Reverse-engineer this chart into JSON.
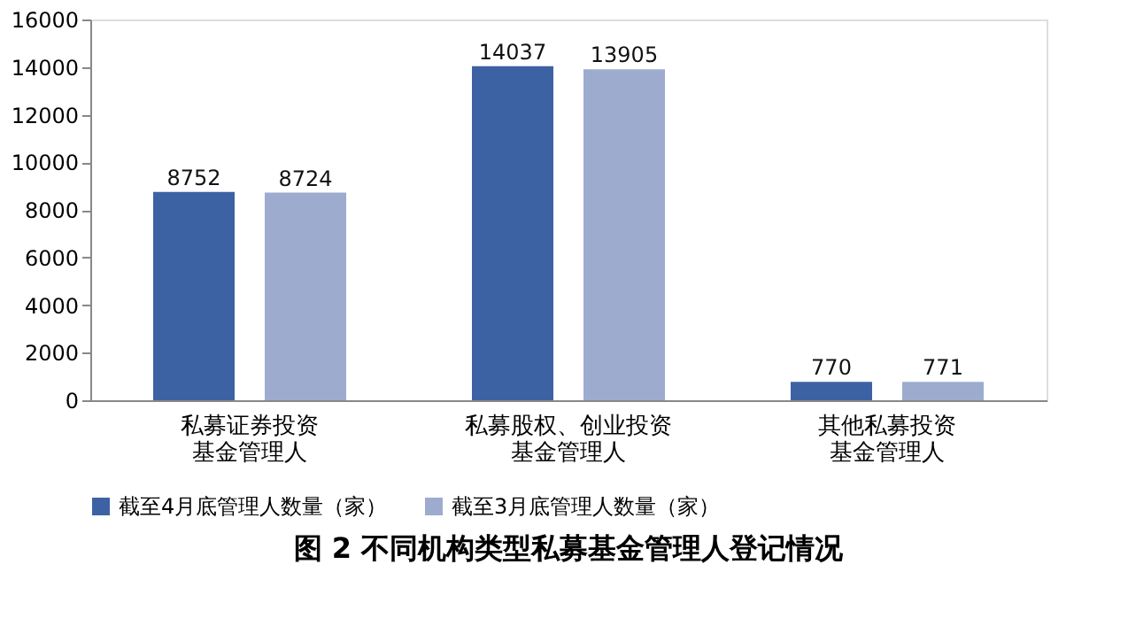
{
  "chart_data": {
    "type": "bar",
    "title": "图 2  不同机构类型私募基金管理人登记情况",
    "categories": [
      "私募证券投资基金管理人",
      "私募股权、创业投资基金管理人",
      "其他私募投资基金管理人"
    ],
    "series": [
      {
        "name": "截至4月底管理人数量（家）",
        "color": "#3d62a3",
        "values": [
          8752,
          14037,
          770
        ]
      },
      {
        "name": "截至3月底管理人数量（家）",
        "color": "#9dabcf",
        "values": [
          8724,
          13905,
          771
        ]
      }
    ],
    "ylim": [
      0,
      16000
    ],
    "yticks": [
      0,
      2000,
      4000,
      6000,
      8000,
      10000,
      12000,
      14000,
      16000
    ],
    "grid": false,
    "legend": "bottom",
    "data_labels": true
  }
}
